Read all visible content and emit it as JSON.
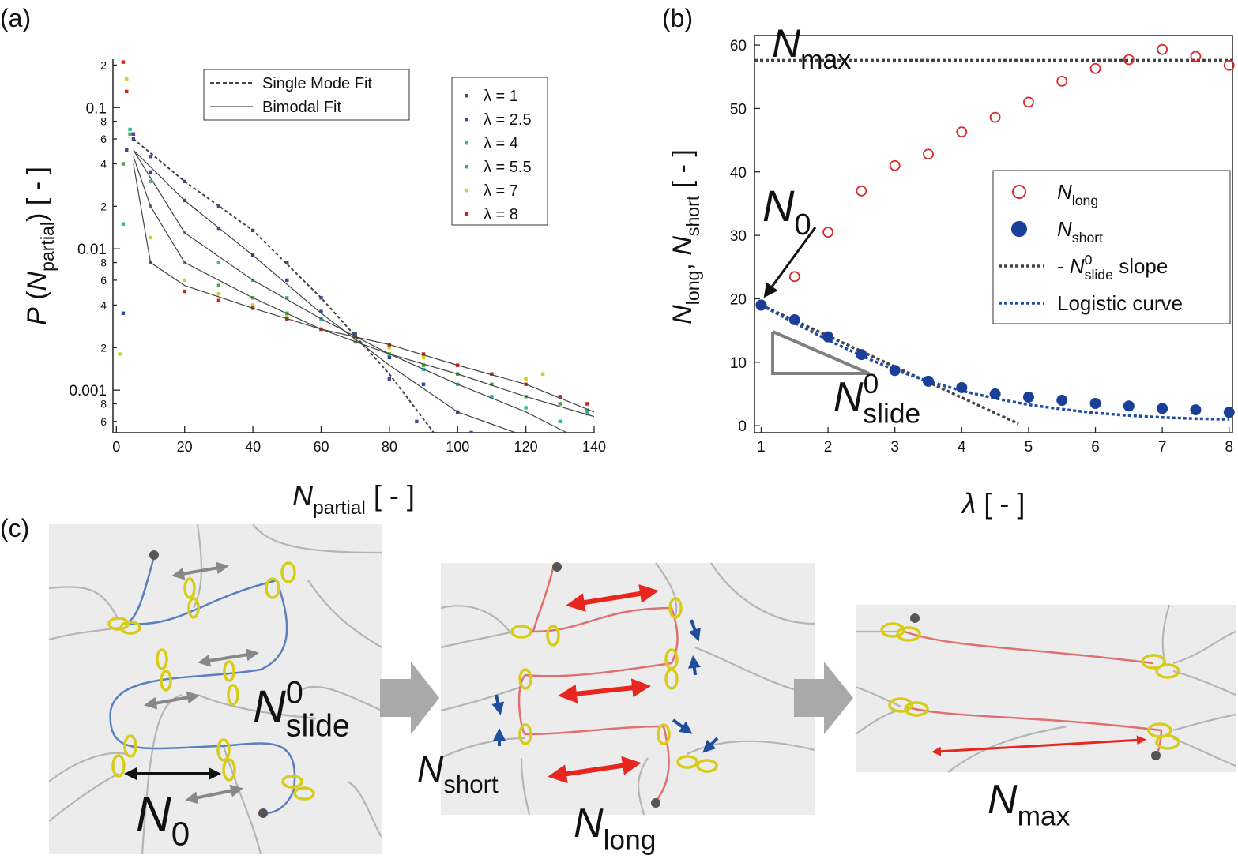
{
  "panel_labels": [
    "(a)",
    "(b)",
    "(c)"
  ],
  "chart_data": [
    {
      "type": "scatter",
      "y_scale": "log",
      "xlim": [
        -1,
        140
      ],
      "ylim": [
        0.0005,
        0.22
      ],
      "xticks": [
        0,
        20,
        40,
        60,
        80,
        100,
        120,
        140
      ],
      "yticks": [
        {
          "value": 0.0006,
          "label": "6"
        },
        {
          "value": 0.0008,
          "label": "8"
        },
        0.001,
        {
          "value": 0.002,
          "label": "2"
        },
        {
          "value": 0.004,
          "label": "4"
        },
        {
          "value": 0.006,
          "label": "6"
        },
        {
          "value": 0.008,
          "label": "8"
        },
        0.01,
        {
          "value": 0.02,
          "label": "2"
        },
        {
          "value": 0.04,
          "label": "4"
        },
        {
          "value": 0.06,
          "label": "6"
        },
        {
          "value": 0.08,
          "label": "8"
        },
        0.1,
        {
          "value": 0.2,
          "label": "2"
        }
      ],
      "xlabel": [
        {
          "text": "N",
          "style": "italic"
        },
        {
          "text": "partial",
          "style": "sub"
        },
        {
          "text": " [ - ]",
          "style": "normal"
        }
      ],
      "ylabel": [
        {
          "text": "P",
          "style": "italic"
        },
        {
          "text": " (",
          "style": "normal"
        },
        {
          "text": "N",
          "style": "italic"
        },
        {
          "text": "partial",
          "style": "sub"
        },
        {
          "text": ") [ - ]",
          "style": "normal"
        }
      ],
      "series": [
        {
          "name": "λ = 1",
          "color": "#5a3d94",
          "x": [
            3,
            5,
            10,
            20,
            30,
            40,
            50,
            60,
            70,
            80,
            88
          ],
          "values": [
            0.05,
            0.065,
            0.045,
            0.03,
            0.02,
            0.0135,
            0.008,
            0.0045,
            0.0022,
            0.0012,
            0.0006
          ]
        },
        {
          "name": "λ = 2.5",
          "color": "#2b4ba8",
          "x": [
            2,
            5,
            10,
            20,
            30,
            40,
            50,
            60,
            70,
            80,
            90,
            100,
            104
          ],
          "values": [
            0.0035,
            0.06,
            0.035,
            0.022,
            0.014,
            0.009,
            0.006,
            0.0036,
            0.0025,
            0.0017,
            0.0011,
            0.0007,
            0.0005
          ]
        },
        {
          "name": "λ = 4",
          "color": "#2fb7a2",
          "x": [
            2,
            4,
            10,
            20,
            30,
            40,
            50,
            60,
            70,
            80,
            90,
            100,
            110,
            120,
            130,
            138
          ],
          "values": [
            0.015,
            0.07,
            0.03,
            0.013,
            0.008,
            0.006,
            0.0045,
            0.0032,
            0.0024,
            0.0018,
            0.0014,
            0.0011,
            0.0009,
            0.00075,
            0.0006,
            0.00068
          ]
        },
        {
          "name": "λ = 5.5",
          "color": "#49a948",
          "x": [
            2,
            4,
            10,
            20,
            30,
            40,
            50,
            60,
            70,
            80,
            90,
            100,
            110,
            120,
            130,
            138
          ],
          "values": [
            0.04,
            0.065,
            0.02,
            0.008,
            0.0055,
            0.0045,
            0.0035,
            0.0027,
            0.0022,
            0.0018,
            0.0015,
            0.0013,
            0.0011,
            0.0009,
            0.0008,
            0.00072
          ]
        },
        {
          "name": "λ = 7",
          "color": "#c9d41c",
          "x": [
            1,
            3,
            10,
            20,
            30,
            40,
            50,
            60,
            70,
            80,
            90,
            100,
            110,
            120,
            125,
            138
          ],
          "values": [
            0.0018,
            0.16,
            0.012,
            0.006,
            0.0048,
            0.004,
            0.0033,
            0.0027,
            0.0023,
            0.002,
            0.0017,
            0.0015,
            0.0013,
            0.0012,
            0.0013,
            0.0008
          ]
        },
        {
          "name": "λ = 8",
          "color": "#d42020",
          "x": [
            2,
            3,
            10,
            20,
            30,
            40,
            50,
            60,
            70,
            80,
            90,
            100,
            110,
            120,
            130,
            138
          ],
          "values": [
            0.21,
            0.13,
            0.008,
            0.005,
            0.0043,
            0.0038,
            0.0032,
            0.0027,
            0.0024,
            0.0021,
            0.0018,
            0.0015,
            0.0013,
            0.0011,
            0.0009,
            0.0008
          ]
        }
      ],
      "fit_color": "#444",
      "fit_legend": [
        {
          "name": "Single Mode Fit",
          "dash": true
        },
        {
          "name": "Bimodal Fit",
          "dash": false
        }
      ],
      "fit_lines": [
        {
          "dash": true,
          "x": [
            5,
            20,
            40,
            60,
            80,
            93
          ],
          "values": [
            0.06,
            0.03,
            0.0135,
            0.0045,
            0.0013,
            0.0005
          ]
        },
        {
          "dash": false,
          "x": [
            5,
            20,
            40,
            60,
            80,
            100,
            117
          ],
          "values": [
            0.05,
            0.022,
            0.009,
            0.0035,
            0.0015,
            0.0007,
            0.0005
          ]
        },
        {
          "dash": false,
          "x": [
            5,
            20,
            40,
            60,
            80,
            100,
            120,
            132
          ],
          "values": [
            0.05,
            0.013,
            0.006,
            0.0032,
            0.0018,
            0.0011,
            0.0007,
            0.0005
          ]
        },
        {
          "dash": false,
          "x": [
            5,
            10,
            20,
            40,
            60,
            80,
            100,
            120,
            140
          ],
          "values": [
            0.045,
            0.02,
            0.008,
            0.0045,
            0.0027,
            0.0018,
            0.0013,
            0.0009,
            0.00065
          ]
        },
        {
          "dash": false,
          "x": [
            5,
            10,
            20,
            40,
            60,
            80,
            100,
            120,
            140
          ],
          "values": [
            0.04,
            0.008,
            0.0055,
            0.0038,
            0.0027,
            0.0021,
            0.0015,
            0.0011,
            0.0007
          ]
        }
      ]
    },
    {
      "type": "scatter",
      "xlim": [
        0.9,
        8.05
      ],
      "ylim": [
        -1.1,
        61.5
      ],
      "xticks": [
        1,
        2,
        3,
        4,
        5,
        6,
        7,
        8
      ],
      "yticks": [
        0,
        10,
        20,
        30,
        40,
        50,
        60
      ],
      "xlabel": [
        {
          "text": "λ",
          "style": "italic"
        },
        {
          "text": " [ - ]",
          "style": "normal"
        }
      ],
      "ylabel": [
        {
          "text": "N",
          "style": "italic"
        },
        {
          "text": "long",
          "style": "sub"
        },
        {
          "text": ", ",
          "style": "normal"
        },
        {
          "text": "N",
          "style": "italic"
        },
        {
          "text": "short",
          "style": "sub"
        },
        {
          "text": " [ - ]",
          "style": "normal"
        }
      ],
      "series": [
        {
          "name": [
            {
              "text": "N",
              "style": "italic"
            },
            {
              "text": "long",
              "style": "sub"
            }
          ],
          "color": "#d42a2a",
          "marker": "open-circle",
          "x": [
            1,
            1.5,
            2,
            2.5,
            3,
            3.5,
            4,
            4.5,
            5,
            5.5,
            6,
            6.5,
            7,
            7.5,
            8
          ],
          "values": [
            19,
            23.5,
            30.5,
            37,
            41,
            42.8,
            46.3,
            48.6,
            51,
            54.3,
            56.3,
            57.7,
            59.3,
            58.2,
            56.8
          ]
        },
        {
          "name": [
            {
              "text": "N",
              "style": "italic"
            },
            {
              "text": "short",
              "style": "sub"
            }
          ],
          "color": "#1a3f99",
          "marker": "filled-circle",
          "x": [
            1,
            1.5,
            2,
            2.5,
            3,
            3.5,
            4,
            4.5,
            5,
            5.5,
            6,
            6.5,
            7,
            7.5,
            8
          ],
          "values": [
            19,
            16.7,
            14,
            11.2,
            8.7,
            7,
            6,
            5,
            4.5,
            4,
            3.5,
            3.1,
            2.7,
            2.5,
            2.1
          ]
        },
        {
          "name": [
            {
              "text": "- ",
              "style": "normal"
            },
            {
              "text": "N",
              "style": "italic"
            },
            {
              "text": "0",
              "style": "sup"
            },
            {
              "text": "slide",
              "style": "sub"
            },
            {
              "text": " slope",
              "style": "normal"
            }
          ],
          "color": "#444",
          "line": "dashed",
          "x": [
            1,
            4.85
          ],
          "values": [
            19,
            0.3
          ]
        },
        {
          "name": [
            {
              "text": "Logistic curve",
              "style": "normal"
            }
          ],
          "color": "#1e4ea8",
          "line": "dashed",
          "x": [
            1,
            1.5,
            2,
            2.5,
            3,
            3.5,
            4,
            4.5,
            5,
            5.5,
            6,
            6.5,
            7,
            7.5,
            8
          ],
          "values": [
            19,
            16.2,
            13.5,
            11,
            8.8,
            7,
            5.5,
            4.3,
            3.3,
            2.6,
            2,
            1.6,
            1.3,
            1.1,
            1.0
          ]
        }
      ],
      "reference_line": {
        "color": "#444",
        "x": [
          0.9,
          8.05
        ],
        "values": [
          57.6,
          57.6
        ]
      },
      "annotations": [
        {
          "color": "#e8261f",
          "text": [
            {
              "text": "N",
              "style": "italic"
            },
            {
              "text": "max",
              "style": "sub"
            }
          ]
        },
        {
          "color": "#111111",
          "text": [
            {
              "text": "N",
              "style": "italic"
            },
            {
              "text": "0",
              "style": "sub"
            }
          ]
        },
        {
          "color": "#808080",
          "text": [
            {
              "text": "N",
              "style": "italic"
            },
            {
              "text": "0",
              "style": "sup"
            },
            {
              "text": "slide",
              "style": "sub"
            }
          ]
        }
      ]
    }
  ],
  "diagram": {
    "labels": [
      {
        "color": "#808080",
        "text": [
          {
            "text": "N",
            "style": "italic"
          },
          {
            "text": "0",
            "style": "sup"
          },
          {
            "text": "slide",
            "style": "sub"
          }
        ]
      },
      {
        "color": "#111111",
        "text": [
          {
            "text": "N",
            "style": "italic"
          },
          {
            "text": "0",
            "style": "sub"
          }
        ]
      },
      {
        "color": "#1f4e9c",
        "text": [
          {
            "text": "N",
            "style": "italic"
          },
          {
            "text": "short",
            "style": "sub"
          }
        ]
      },
      {
        "color": "#e8261f",
        "text": [
          {
            "text": "N",
            "style": "italic"
          },
          {
            "text": "long",
            "style": "sub"
          }
        ]
      },
      {
        "color": "#e8261f",
        "text": [
          {
            "text": "N",
            "style": "italic"
          },
          {
            "text": "max",
            "style": "sub"
          }
        ]
      }
    ]
  }
}
